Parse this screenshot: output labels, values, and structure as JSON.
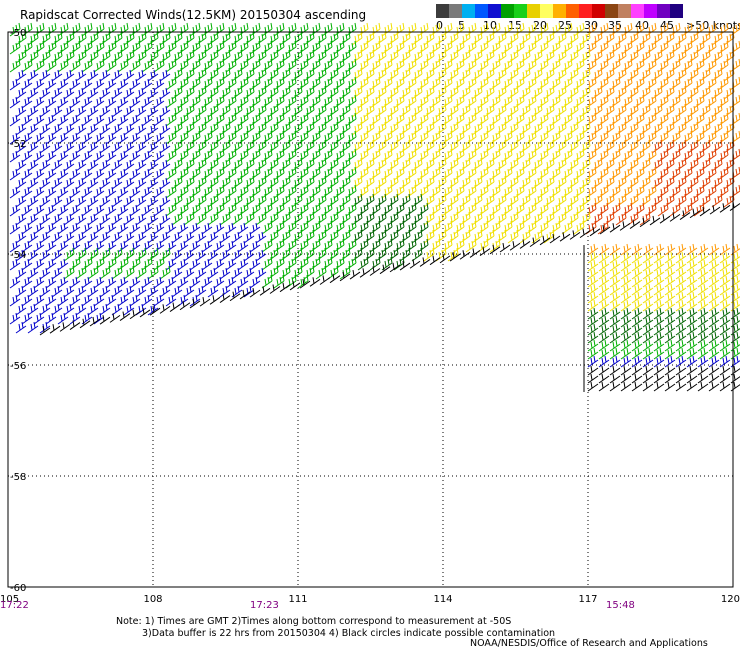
{
  "title": "Rapidscat Corrected Winds(12.5KM) 20150304 ascending",
  "legend": {
    "colors": [
      "#3c3c3c",
      "#7a7a7a",
      "#00b0f0",
      "#0058ff",
      "#1010d0",
      "#00a000",
      "#18d018",
      "#e8d000",
      "#ffff60",
      "#ffb000",
      "#ff6000",
      "#ff2020",
      "#d00000",
      "#8b4513",
      "#c08060",
      "#ff40ff",
      "#c000ff",
      "#7000c0",
      "#200080"
    ],
    "labels": [
      "0",
      "5",
      "10",
      "15",
      "20",
      "25",
      "30",
      "35",
      "40",
      "45",
      ">50 knots"
    ]
  },
  "axes": {
    "lon_labels": [
      "105",
      "108",
      "111",
      "114",
      "117",
      "120"
    ],
    "lat_labels": [
      "-50",
      "-52",
      "-54",
      "-56",
      "-58",
      "-60"
    ]
  },
  "swath_times": [
    "17:22",
    "17:23",
    "15:48"
  ],
  "note": {
    "line1": "Note: 1) Times are GMT 2)Times along bottom correspond to measurement at -50S",
    "line2": "3)Data buffer is 22 hrs from 20150304 4) Black circles indicate possible contamination"
  },
  "credit": "NOAA/NESDIS/Office of Research and Applications",
  "colors": {
    "time_label": "#800080",
    "grid": "#000000",
    "calm": "#000000",
    "light": "#0000cc",
    "moderate": "#00b000",
    "dark_green": "#006400",
    "yellow": "#f0e000",
    "orange": "#ff9900",
    "red_orange": "#e04000"
  }
}
